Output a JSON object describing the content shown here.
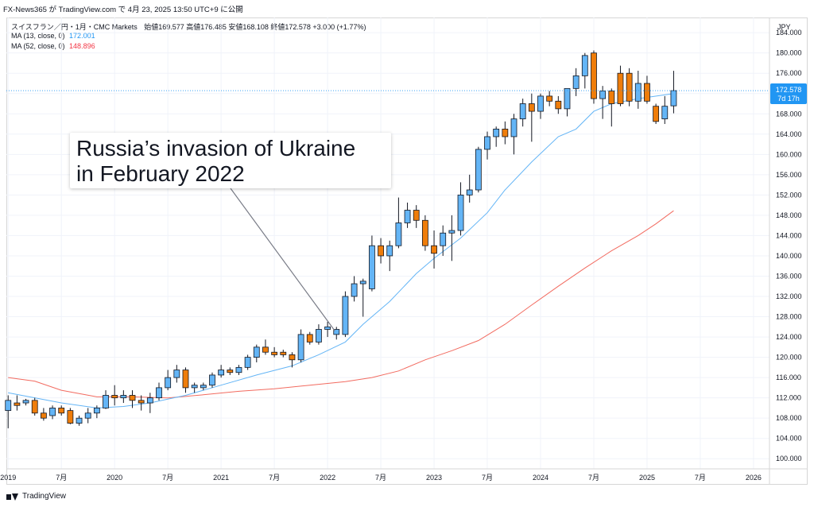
{
  "header": {
    "text": "FX-News365 が TradingView.com で 4月 23, 2025 13:50 UTC+9 に公開"
  },
  "symbol_line": {
    "name": "スイスフラン／円・1月・CMC Markets",
    "ohlc": "始値169.577  高値176.485  安値168.108  終値172.578  +3.000 (+1.77%)"
  },
  "indicators": [
    {
      "label": "MA (13, close, 0)",
      "value": "172.001",
      "color": "#2196f3"
    },
    {
      "label": "MA (52, close, 0)",
      "value": "148.896",
      "color": "#f23645"
    }
  ],
  "currency_label": "JPY",
  "price_tag": {
    "value": "172.578",
    "countdown": "7d 17h",
    "color": "#2196f3"
  },
  "annotation": {
    "line1": "Russia’s invasion of Ukraine",
    "line2": "in February 2022"
  },
  "footer": {
    "brand": "TradingView"
  },
  "colors": {
    "up": "#64b5f6",
    "down": "#ef7d0a",
    "ma13": "#64b5f6",
    "ma52": "#f26b60",
    "grid": "#f0f3fa",
    "border": "#131722"
  },
  "chart_data": {
    "type": "candlestick",
    "interval": "1M",
    "ylim": [
      98,
      187
    ],
    "y_ticks": [
      100,
      104,
      108,
      112,
      116,
      120,
      124,
      128,
      132,
      136,
      140,
      144,
      148,
      152,
      156,
      160,
      164,
      168,
      172,
      176,
      180,
      184
    ],
    "y_tick_labels": [
      "100.000",
      "104.000",
      "108.000",
      "112.000",
      "116.000",
      "120.000",
      "124.000",
      "128.000",
      "132.000",
      "136.000",
      "140.000",
      "144.000",
      "148.000",
      "152.000",
      "156.000",
      "160.000",
      "164.000",
      "168.000",
      "172.000",
      "176.000",
      "180.000",
      "184.000"
    ],
    "x_ticks": [
      {
        "index": 0,
        "label": "2019"
      },
      {
        "index": 6,
        "label": "7月"
      },
      {
        "index": 12,
        "label": "2020"
      },
      {
        "index": 18,
        "label": "7月"
      },
      {
        "index": 24,
        "label": "2021"
      },
      {
        "index": 30,
        "label": "7月"
      },
      {
        "index": 36,
        "label": "2022"
      },
      {
        "index": 42,
        "label": "7月"
      },
      {
        "index": 48,
        "label": "2023"
      },
      {
        "index": 54,
        "label": "7月"
      },
      {
        "index": 60,
        "label": "2024"
      },
      {
        "index": 66,
        "label": "7月"
      },
      {
        "index": 72,
        "label": "2025"
      },
      {
        "index": 78,
        "label": "7月"
      },
      {
        "index": 84,
        "label": "2026"
      }
    ],
    "x_range": [
      0,
      86
    ],
    "candles": [
      {
        "o": 109.5,
        "h": 112.5,
        "l": 106.0,
        "c": 111.5
      },
      {
        "o": 111.0,
        "h": 112.5,
        "l": 109.5,
        "c": 110.5
      },
      {
        "o": 111.0,
        "h": 111.8,
        "l": 110.5,
        "c": 111.5
      },
      {
        "o": 111.5,
        "h": 112.0,
        "l": 108.5,
        "c": 109.0
      },
      {
        "o": 109.0,
        "h": 110.0,
        "l": 107.5,
        "c": 108.0
      },
      {
        "o": 108.5,
        "h": 110.5,
        "l": 107.8,
        "c": 110.0
      },
      {
        "o": 110.0,
        "h": 110.5,
        "l": 108.5,
        "c": 109.0
      },
      {
        "o": 109.5,
        "h": 110.0,
        "l": 106.8,
        "c": 107.0
      },
      {
        "o": 107.0,
        "h": 108.5,
        "l": 106.5,
        "c": 108.0
      },
      {
        "o": 108.0,
        "h": 110.0,
        "l": 107.0,
        "c": 109.0
      },
      {
        "o": 109.0,
        "h": 110.5,
        "l": 108.0,
        "c": 110.0
      },
      {
        "o": 110.0,
        "h": 113.5,
        "l": 109.8,
        "c": 112.5
      },
      {
        "o": 112.5,
        "h": 114.5,
        "l": 110.5,
        "c": 112.0
      },
      {
        "o": 112.0,
        "h": 113.5,
        "l": 111.0,
        "c": 112.5
      },
      {
        "o": 112.5,
        "h": 113.5,
        "l": 110.0,
        "c": 111.5
      },
      {
        "o": 111.5,
        "h": 112.5,
        "l": 109.5,
        "c": 111.0
      },
      {
        "o": 111.0,
        "h": 113.0,
        "l": 109.0,
        "c": 112.0
      },
      {
        "o": 112.0,
        "h": 115.0,
        "l": 111.5,
        "c": 114.0
      },
      {
        "o": 114.0,
        "h": 117.5,
        "l": 113.5,
        "c": 116.0
      },
      {
        "o": 116.0,
        "h": 118.5,
        "l": 115.0,
        "c": 117.5
      },
      {
        "o": 117.5,
        "h": 118.0,
        "l": 113.0,
        "c": 114.0
      },
      {
        "o": 114.0,
        "h": 115.0,
        "l": 113.0,
        "c": 114.5
      },
      {
        "o": 114.0,
        "h": 115.0,
        "l": 113.5,
        "c": 114.5
      },
      {
        "o": 114.5,
        "h": 117.0,
        "l": 114.0,
        "c": 116.5
      },
      {
        "o": 116.5,
        "h": 118.5,
        "l": 116.0,
        "c": 117.5
      },
      {
        "o": 117.5,
        "h": 118.0,
        "l": 116.5,
        "c": 117.0
      },
      {
        "o": 117.0,
        "h": 118.5,
        "l": 116.5,
        "c": 118.0
      },
      {
        "o": 118.0,
        "h": 120.5,
        "l": 117.5,
        "c": 120.0
      },
      {
        "o": 120.0,
        "h": 122.5,
        "l": 119.0,
        "c": 122.0
      },
      {
        "o": 122.0,
        "h": 123.5,
        "l": 120.5,
        "c": 121.0
      },
      {
        "o": 121.0,
        "h": 122.0,
        "l": 120.0,
        "c": 120.5
      },
      {
        "o": 121.0,
        "h": 121.5,
        "l": 120.0,
        "c": 120.5
      },
      {
        "o": 120.5,
        "h": 121.0,
        "l": 118.0,
        "c": 119.5
      },
      {
        "o": 119.5,
        "h": 125.5,
        "l": 119.0,
        "c": 124.5
      },
      {
        "o": 124.5,
        "h": 125.0,
        "l": 122.5,
        "c": 123.0
      },
      {
        "o": 123.0,
        "h": 126.5,
        "l": 122.5,
        "c": 125.5
      },
      {
        "o": 125.5,
        "h": 127.0,
        "l": 124.0,
        "c": 126.0
      },
      {
        "o": 124.5,
        "h": 126.0,
        "l": 123.5,
        "c": 125.5
      },
      {
        "o": 124.5,
        "h": 133.0,
        "l": 124.0,
        "c": 132.0
      },
      {
        "o": 132.0,
        "h": 136.0,
        "l": 131.0,
        "c": 134.5
      },
      {
        "o": 134.5,
        "h": 135.5,
        "l": 128.0,
        "c": 135.0
      },
      {
        "o": 133.5,
        "h": 144.0,
        "l": 133.0,
        "c": 142.0
      },
      {
        "o": 142.0,
        "h": 143.5,
        "l": 138.5,
        "c": 140.0
      },
      {
        "o": 140.0,
        "h": 143.0,
        "l": 137.0,
        "c": 142.0
      },
      {
        "o": 142.0,
        "h": 151.5,
        "l": 141.5,
        "c": 146.5
      },
      {
        "o": 146.5,
        "h": 150.5,
        "l": 145.5,
        "c": 149.0
      },
      {
        "o": 149.0,
        "h": 150.0,
        "l": 145.5,
        "c": 147.0
      },
      {
        "o": 147.0,
        "h": 148.0,
        "l": 141.0,
        "c": 142.0
      },
      {
        "o": 142.0,
        "h": 145.0,
        "l": 137.5,
        "c": 140.5
      },
      {
        "o": 142.0,
        "h": 146.0,
        "l": 140.0,
        "c": 144.5
      },
      {
        "o": 144.5,
        "h": 148.0,
        "l": 139.0,
        "c": 145.0
      },
      {
        "o": 145.0,
        "h": 154.5,
        "l": 144.0,
        "c": 152.0
      },
      {
        "o": 152.0,
        "h": 156.0,
        "l": 150.5,
        "c": 153.0
      },
      {
        "o": 153.0,
        "h": 161.5,
        "l": 152.5,
        "c": 161.0
      },
      {
        "o": 161.0,
        "h": 164.5,
        "l": 159.0,
        "c": 163.5
      },
      {
        "o": 163.5,
        "h": 165.5,
        "l": 161.5,
        "c": 165.0
      },
      {
        "o": 165.0,
        "h": 166.5,
        "l": 162.0,
        "c": 163.5
      },
      {
        "o": 163.5,
        "h": 168.0,
        "l": 160.0,
        "c": 167.0
      },
      {
        "o": 167.0,
        "h": 171.0,
        "l": 165.5,
        "c": 170.0
      },
      {
        "o": 170.0,
        "h": 172.0,
        "l": 162.5,
        "c": 168.5
      },
      {
        "o": 168.5,
        "h": 172.0,
        "l": 167.0,
        "c": 171.5
      },
      {
        "o": 171.5,
        "h": 172.5,
        "l": 169.5,
        "c": 170.5
      },
      {
        "o": 170.5,
        "h": 171.5,
        "l": 168.0,
        "c": 169.0
      },
      {
        "o": 169.0,
        "h": 173.0,
        "l": 167.5,
        "c": 173.0
      },
      {
        "o": 173.0,
        "h": 177.0,
        "l": 171.5,
        "c": 175.5
      },
      {
        "o": 175.5,
        "h": 180.0,
        "l": 173.0,
        "c": 179.5
      },
      {
        "o": 180.0,
        "h": 180.5,
        "l": 170.0,
        "c": 171.0
      },
      {
        "o": 171.0,
        "h": 173.5,
        "l": 167.0,
        "c": 172.5
      },
      {
        "o": 172.5,
        "h": 173.0,
        "l": 165.5,
        "c": 170.0
      },
      {
        "o": 176.0,
        "h": 177.5,
        "l": 169.5,
        "c": 170.0
      },
      {
        "o": 176.0,
        "h": 177.0,
        "l": 169.5,
        "c": 170.5
      },
      {
        "o": 170.5,
        "h": 176.5,
        "l": 169.0,
        "c": 174.0
      },
      {
        "o": 174.0,
        "h": 175.5,
        "l": 170.0,
        "c": 170.5
      },
      {
        "o": 169.5,
        "h": 170.0,
        "l": 166.0,
        "c": 166.5
      },
      {
        "o": 167.0,
        "h": 171.5,
        "l": 166.0,
        "c": 169.5
      },
      {
        "o": 169.577,
        "h": 176.485,
        "l": 168.108,
        "c": 172.578
      }
    ],
    "ma13": [
      {
        "i": 0,
        "v": 113.0
      },
      {
        "i": 6,
        "v": 111.0
      },
      {
        "i": 10,
        "v": 110.0
      },
      {
        "i": 13,
        "v": 110.3
      },
      {
        "i": 16,
        "v": 111.0
      },
      {
        "i": 20,
        "v": 112.5
      },
      {
        "i": 24,
        "v": 114.5
      },
      {
        "i": 28,
        "v": 116.5
      },
      {
        "i": 32,
        "v": 118.3
      },
      {
        "i": 35,
        "v": 120.5
      },
      {
        "i": 38,
        "v": 123.0
      },
      {
        "i": 40,
        "v": 126.5
      },
      {
        "i": 43,
        "v": 131.0
      },
      {
        "i": 46,
        "v": 136.5
      },
      {
        "i": 48,
        "v": 139.5
      },
      {
        "i": 51,
        "v": 143.5
      },
      {
        "i": 54,
        "v": 148.5
      },
      {
        "i": 56,
        "v": 153.0
      },
      {
        "i": 59,
        "v": 158.5
      },
      {
        "i": 62,
        "v": 163.5
      },
      {
        "i": 64,
        "v": 165.0
      },
      {
        "i": 66,
        "v": 168.5
      },
      {
        "i": 68,
        "v": 170.0
      },
      {
        "i": 71,
        "v": 171.0
      },
      {
        "i": 75,
        "v": 172.0
      }
    ],
    "ma52": [
      {
        "i": 0,
        "v": 116.0
      },
      {
        "i": 3,
        "v": 115.3
      },
      {
        "i": 6,
        "v": 113.5
      },
      {
        "i": 10,
        "v": 112.2
      },
      {
        "i": 14,
        "v": 112.2
      },
      {
        "i": 18,
        "v": 112.0
      },
      {
        "i": 22,
        "v": 112.6
      },
      {
        "i": 26,
        "v": 113.3
      },
      {
        "i": 30,
        "v": 113.8
      },
      {
        "i": 34,
        "v": 114.5
      },
      {
        "i": 38,
        "v": 115.2
      },
      {
        "i": 41,
        "v": 116.0
      },
      {
        "i": 44,
        "v": 117.3
      },
      {
        "i": 47,
        "v": 119.5
      },
      {
        "i": 50,
        "v": 121.3
      },
      {
        "i": 53,
        "v": 123.3
      },
      {
        "i": 56,
        "v": 126.5
      },
      {
        "i": 59,
        "v": 130.3
      },
      {
        "i": 62,
        "v": 134.0
      },
      {
        "i": 65,
        "v": 137.6
      },
      {
        "i": 68,
        "v": 141.0
      },
      {
        "i": 71,
        "v": 144.0
      },
      {
        "i": 73,
        "v": 146.3
      },
      {
        "i": 75,
        "v": 148.9
      }
    ],
    "last_price": 172.578
  }
}
